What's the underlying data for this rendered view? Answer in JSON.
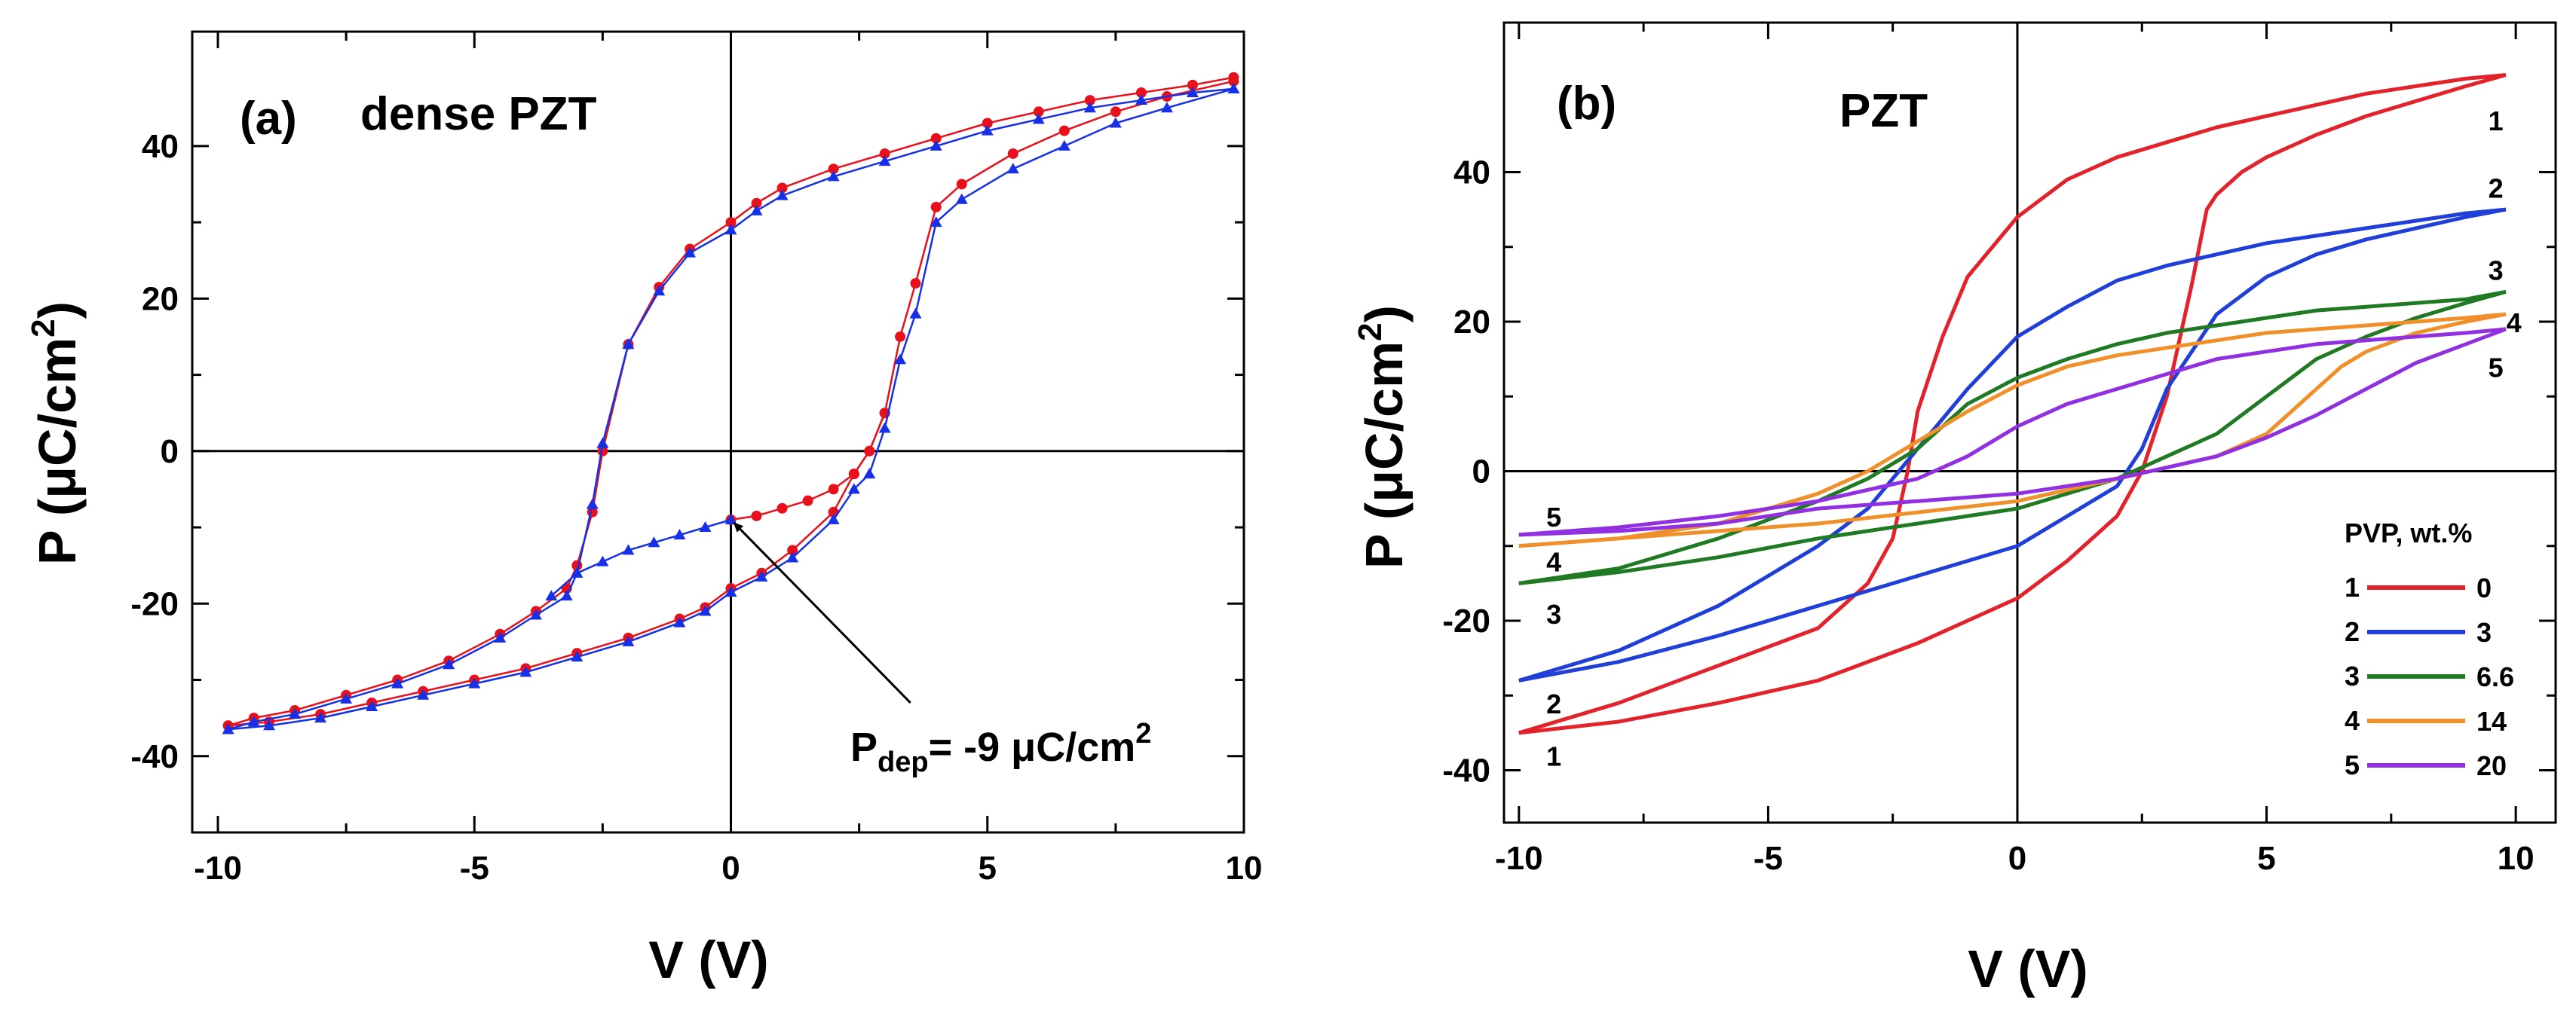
{
  "chart_data": [
    {
      "panel": "(a)",
      "title": "dense PZT",
      "type": "line",
      "xlabel": "V (V)",
      "ylabel_main": "P (μC/cm",
      "ylabel_sup": "2",
      "ylabel_tail": ")",
      "xlim": [
        -10.5,
        10
      ],
      "ylim": [
        -50,
        55
      ],
      "xticks": [
        -10,
        -5,
        0,
        5,
        10
      ],
      "yticks": [
        -40,
        -20,
        0,
        20,
        40
      ],
      "xtick_labels": [
        "-10",
        "-5",
        "0",
        "5",
        "10"
      ],
      "ytick_labels": [
        "-40",
        "-20",
        "0",
        "20",
        "40"
      ],
      "annotation": {
        "text_main": "P",
        "text_sub": "dep",
        "text_rest": "= -9 μC/cm",
        "text_sup": "2",
        "point": [
          0,
          -9
        ]
      },
      "colors": {
        "red": "#e8101a",
        "blue": "#1530e6",
        "axis": "#000000"
      },
      "series": [
        {
          "marker": "circle",
          "color": "#e8101a",
          "upper": {
            "x": [
              -9.8,
              -9.3,
              -8.5,
              -7.5,
              -6.5,
              -5.5,
              -4.5,
              -3.8,
              -3.2,
              -3.0,
              -2.7,
              -2.5,
              -2.0,
              -1.4,
              -0.8,
              0,
              0.5,
              1.0,
              2.0,
              3.0,
              4.0,
              5.0,
              6.0,
              7.0,
              8.0,
              9.0,
              9.8
            ],
            "y": [
              -36,
              -35,
              -34,
              -32,
              -30,
              -27.5,
              -24,
              -21,
              -18,
              -15,
              -8,
              0,
              14,
              21.5,
              26.5,
              30,
              32.5,
              34.5,
              37,
              39,
              41,
              43,
              44.5,
              46,
              47,
              48,
              49
            ]
          },
          "lower": {
            "x": [
              -9.8,
              -9,
              -8,
              -7,
              -6,
              -5,
              -4,
              -3,
              -2,
              -1,
              -0.5,
              0,
              0.6,
              1.2,
              2.0,
              2.4,
              2.7,
              3.0,
              3.3,
              3.6,
              4.0,
              4.5,
              5.5,
              6.5,
              7.5,
              8.5,
              9.8
            ],
            "y": [
              -36,
              -35.5,
              -34.5,
              -33,
              -31.5,
              -30,
              -28.5,
              -26.5,
              -24.5,
              -22,
              -20.5,
              -18,
              -16,
              -13,
              -8,
              -3,
              0,
              5,
              15,
              22,
              32,
              35,
              39,
              42,
              44.5,
              46.5,
              48.5
            ]
          },
          "virgin": {
            "x": [
              0,
              0.5,
              1.0,
              1.5,
              2.0,
              2.4,
              2.7,
              3.0
            ],
            "y": [
              -9,
              -8.5,
              -7.5,
              -6.5,
              -5,
              -3,
              0,
              5
            ]
          }
        },
        {
          "marker": "triangle",
          "color": "#1530e6",
          "upper": {
            "x": [
              -9.8,
              -9.3,
              -8.5,
              -7.5,
              -6.5,
              -5.5,
              -4.5,
              -3.8,
              -3.2,
              -3.0,
              -2.7,
              -2.5,
              -2.0,
              -1.4,
              -0.8,
              0,
              0.5,
              1.0,
              2.0,
              3.0,
              4.0,
              5.0,
              6.0,
              7.0,
              8.0,
              9.0,
              9.8
            ],
            "y": [
              -36.5,
              -35.5,
              -34.5,
              -32.5,
              -30.5,
              -28,
              -24.5,
              -21.5,
              -19,
              -16,
              -7,
              1,
              14,
              21,
              26,
              29,
              31.5,
              33.5,
              36,
              38,
              40,
              42,
              43.5,
              45,
              46,
              47,
              47.5
            ]
          },
          "lower": {
            "x": [
              -9.8,
              -9,
              -8,
              -7,
              -6,
              -5,
              -4,
              -3,
              -2,
              -1,
              -0.5,
              0,
              0.6,
              1.2,
              2.0,
              2.4,
              2.7,
              3.0,
              3.3,
              3.6,
              4.0,
              4.5,
              5.5,
              6.5,
              7.5,
              8.5,
              9.8
            ],
            "y": [
              -36.5,
              -36,
              -35,
              -33.5,
              -32,
              -30.5,
              -29,
              -27,
              -25,
              -22.5,
              -21,
              -18.5,
              -16.5,
              -14,
              -9,
              -5,
              -3,
              3,
              12,
              18,
              30,
              33,
              37,
              40,
              43,
              45,
              47.5
            ]
          },
          "virgin": {
            "x": [
              0,
              -0.5,
              -1,
              -1.5,
              -2.0,
              -2.5,
              -3.0,
              -3.5
            ],
            "y": [
              -9,
              -10,
              -11,
              -12,
              -13,
              -14.5,
              -16,
              -19
            ]
          }
        }
      ]
    },
    {
      "panel": "(b)",
      "title": "PZT",
      "type": "line",
      "xlabel": "V (V)",
      "ylabel_main": "P (μC/cm",
      "ylabel_sup": "2",
      "ylabel_tail": ")",
      "xlim": [
        -10.3,
        10.8
      ],
      "ylim": [
        -47,
        60
      ],
      "xticks": [
        -10,
        -5,
        0,
        5,
        10
      ],
      "yticks": [
        -40,
        -20,
        0,
        20,
        40
      ],
      "xtick_labels": [
        "-10",
        "-5",
        "0",
        "5",
        "10"
      ],
      "ytick_labels": [
        "-40",
        "-20",
        "0",
        "20",
        "40"
      ],
      "legend": {
        "title": "PVP, wt.%",
        "placement": "bottom-right",
        "entries": [
          {
            "num": "1",
            "label": "0",
            "color": "#e2232b"
          },
          {
            "num": "2",
            "label": "3",
            "color": "#1f3fd8"
          },
          {
            "num": "3",
            "label": "6.6",
            "color": "#1f7a23"
          },
          {
            "num": "4",
            "label": "14",
            "color": "#f0902a"
          },
          {
            "num": "5",
            "label": "20",
            "color": "#9030e0"
          }
        ]
      },
      "series": [
        {
          "name": "0",
          "num": "1",
          "color": "#e2232b",
          "upper": {
            "x": [
              -10,
              -8,
              -6,
              -4,
              -3,
              -2.5,
              -2.2,
              -2.0,
              -1.5,
              -1.0,
              0,
              1,
              2,
              3,
              4,
              5,
              6,
              7,
              8,
              9,
              9.8
            ],
            "y": [
              -35,
              -31,
              -26,
              -21,
              -15,
              -9,
              0,
              8,
              18,
              26,
              34,
              39,
              42,
              44,
              46,
              47.5,
              49,
              50.5,
              51.5,
              52.5,
              53
            ]
          },
          "lower": {
            "x": [
              -10,
              -8,
              -6,
              -4,
              -2,
              0,
              1,
              2,
              2.5,
              3,
              3.5,
              3.8,
              4.0,
              4.5,
              5,
              6,
              7,
              8,
              9,
              9.8
            ],
            "y": [
              -35,
              -33.5,
              -31,
              -28,
              -23,
              -17,
              -12,
              -6,
              0,
              10,
              25,
              35,
              37,
              40,
              42,
              45,
              47.5,
              49.5,
              51.5,
              53
            ]
          }
        },
        {
          "name": "3",
          "num": "2",
          "color": "#1f3fd8",
          "upper": {
            "x": [
              -10,
              -8,
              -6,
              -4,
              -3,
              -2.5,
              -2,
              -1.5,
              -1,
              0,
              1,
              2,
              3,
              4,
              5,
              6,
              7,
              8,
              9,
              9.8
            ],
            "y": [
              -28,
              -24,
              -18,
              -10,
              -5,
              -1,
              3,
              7,
              11,
              18,
              22,
              25.5,
              27.5,
              29,
              30.5,
              31.5,
              32.5,
              33.5,
              34.5,
              35
            ]
          },
          "lower": {
            "x": [
              -10,
              -8,
              -6,
              -4,
              -2,
              0,
              1,
              2,
              2.5,
              3,
              4,
              5,
              6,
              7,
              8,
              9,
              9.8
            ],
            "y": [
              -28,
              -25.5,
              -22,
              -18,
              -14,
              -10,
              -6,
              -2,
              3,
              11,
              21,
              26,
              29,
              31,
              32.5,
              34,
              35
            ]
          }
        },
        {
          "name": "6.6",
          "num": "3",
          "color": "#1f7a23",
          "upper": {
            "x": [
              -10,
              -8,
              -6,
              -4,
              -3,
              -2,
              -1,
              0,
              1,
              2,
              3,
              4,
              5,
              6,
              7,
              8,
              9,
              9.8
            ],
            "y": [
              -15,
              -13,
              -9,
              -4,
              -1,
              3,
              9,
              12.5,
              15,
              17,
              18.5,
              19.5,
              20.5,
              21.5,
              22,
              22.5,
              23,
              24
            ]
          },
          "lower": {
            "x": [
              -10,
              -8,
              -6,
              -4,
              -2,
              0,
              2,
              3,
              4,
              5,
              6,
              7,
              8,
              9,
              9.8
            ],
            "y": [
              -15,
              -13.5,
              -11.5,
              -9,
              -7,
              -5,
              -1,
              2,
              5,
              10,
              15,
              18,
              20.5,
              22.5,
              24
            ]
          }
        },
        {
          "name": "14",
          "num": "4",
          "color": "#f0902a",
          "upper": {
            "x": [
              -10,
              -8,
              -6,
              -4,
              -3,
              -2,
              -1,
              0,
              1,
              2,
              3,
              4,
              5,
              6,
              7,
              8,
              9,
              9.8
            ],
            "y": [
              -10,
              -9,
              -7,
              -3,
              0,
              4,
              8,
              11.5,
              14,
              15.5,
              16.5,
              17.5,
              18.5,
              19,
              19.5,
              20,
              20.5,
              21
            ]
          },
          "lower": {
            "x": [
              -10,
              -8,
              -6,
              -4,
              -2,
              0,
              2,
              3,
              4,
              5,
              5.5,
              6,
              6.5,
              7,
              8,
              9,
              9.8
            ],
            "y": [
              -10,
              -9,
              -8,
              -7,
              -5.5,
              -4,
              -1,
              0.5,
              2,
              5,
              8,
              11,
              14,
              16,
              18.5,
              20,
              21
            ]
          }
        },
        {
          "name": "20",
          "num": "5",
          "color": "#9030e0",
          "upper": {
            "x": [
              -10,
              -8,
              -6,
              -4,
              -2,
              -1,
              0,
              1,
              2,
              3,
              4,
              5,
              6,
              7,
              8,
              9,
              9.8
            ],
            "y": [
              -8.5,
              -7.5,
              -6,
              -4,
              -1,
              2,
              6,
              9,
              11,
              13,
              15,
              16,
              17,
              17.5,
              18,
              18.5,
              19
            ]
          },
          "lower": {
            "x": [
              -10,
              -8,
              -6,
              -4,
              -2,
              0,
              2,
              3,
              4,
              5,
              6,
              7,
              8,
              9,
              9.8
            ],
            "y": [
              -8.5,
              -8,
              -7,
              -5,
              -4,
              -3,
              -1,
              0.5,
              2,
              4.5,
              7.5,
              11,
              14.5,
              17,
              19
            ]
          }
        }
      ],
      "curve_labels_right": [
        {
          "num": "1",
          "y": 47
        },
        {
          "num": "2",
          "y": 38
        },
        {
          "num": "3",
          "y": 27
        },
        {
          "num": "4",
          "y": 20
        },
        {
          "num": "5",
          "y": 14
        }
      ],
      "curve_labels_left": [
        {
          "num": "5",
          "y": -6
        },
        {
          "num": "4",
          "y": -12
        },
        {
          "num": "3",
          "y": -19
        },
        {
          "num": "2",
          "y": -31
        },
        {
          "num": "1",
          "y": -38
        }
      ]
    }
  ]
}
